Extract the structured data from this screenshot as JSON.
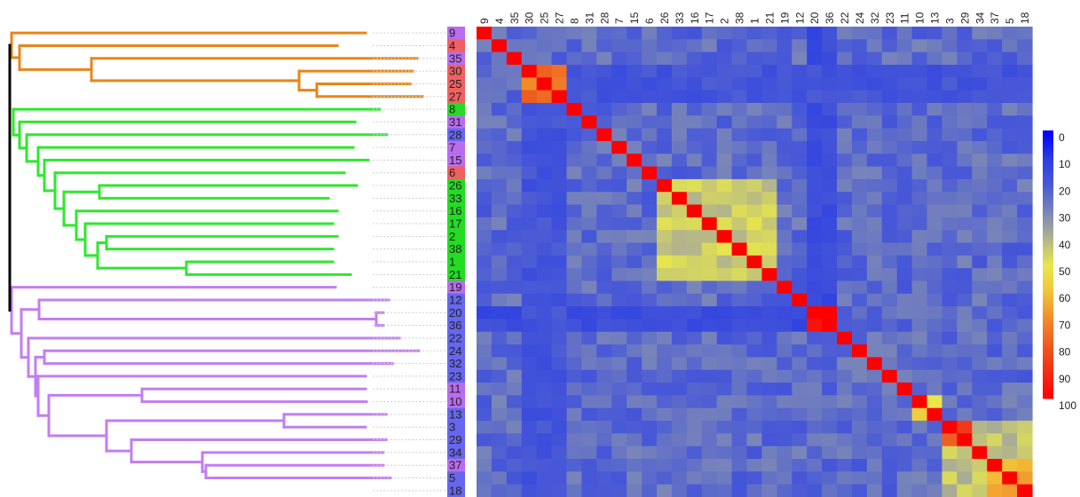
{
  "chart_data": {
    "type": "heatmap",
    "order": [
      "9",
      "4",
      "35",
      "30",
      "25",
      "27",
      "8",
      "31",
      "28",
      "7",
      "15",
      "6",
      "26",
      "33",
      "16",
      "17",
      "2",
      "38",
      "1",
      "21",
      "19",
      "12",
      "20",
      "36",
      "22",
      "24",
      "32",
      "23",
      "11",
      "10",
      "13",
      "3",
      "29",
      "34",
      "37",
      "5",
      "18"
    ],
    "leaf_groups": [
      "orange",
      "orange",
      "orange",
      "orange",
      "orange",
      "orange",
      "green",
      "green",
      "green",
      "green",
      "green",
      "green",
      "green",
      "green",
      "green",
      "green",
      "green",
      "green",
      "green",
      "green",
      "purple",
      "purple",
      "purple",
      "purple",
      "purple",
      "purple",
      "purple",
      "purple",
      "purple",
      "purple",
      "purple",
      "purple",
      "purple",
      "purple",
      "purple",
      "purple",
      "purple"
    ],
    "label_box_colors": [
      "#b86cf0",
      "#f06060",
      "#b86cf0",
      "#f06060",
      "#f06060",
      "#f06060",
      "#22dd22",
      "#b86cf0",
      "#6666ee",
      "#b86cf0",
      "#b86cf0",
      "#f06060",
      "#22dd22",
      "#22dd22",
      "#22dd22",
      "#22dd22",
      "#22dd22",
      "#22dd22",
      "#22dd22",
      "#22dd22",
      "#b86cf0",
      "#6666ee",
      "#6666ee",
      "#6666ee",
      "#6666ee",
      "#6666ee",
      "#6666ee",
      "#6666ee",
      "#b86cf0",
      "#b86cf0",
      "#6666ee",
      "#6666ee",
      "#6666ee",
      "#6666ee",
      "#b86cf0",
      "#6666ee",
      "#6666ee"
    ],
    "tree_colors": {
      "orange": "#e8851a",
      "green": "#2ee82e",
      "purple": "#c27ef2",
      "root": "#000000"
    },
    "blocks": [
      {
        "start": 3,
        "end": 5,
        "value": 75
      },
      {
        "start": 12,
        "end": 19,
        "value": 45
      },
      {
        "start": 22,
        "end": 23,
        "value": 100
      },
      {
        "start": 29,
        "end": 30,
        "value": 55
      },
      {
        "start": 31,
        "end": 32,
        "value": 82
      },
      {
        "start": 31,
        "end": 36,
        "value": 43
      },
      {
        "start": 34,
        "end": 36,
        "value": 62
      }
    ],
    "low_blocks": [
      {
        "rows": [
          22,
          23
        ],
        "cols": [
          0,
          1,
          2,
          3,
          4,
          5,
          6,
          7,
          8,
          9,
          10,
          11,
          12,
          13,
          14,
          15,
          16,
          17,
          18,
          19,
          20,
          21
        ],
        "value": 15
      },
      {
        "rows": [
          3,
          4,
          5
        ],
        "cols": [
          6,
          7,
          8,
          9,
          10,
          11,
          12,
          13,
          14,
          15,
          16,
          17,
          18,
          19,
          20,
          21,
          22,
          23,
          24,
          25,
          26,
          27,
          28,
          29,
          30,
          31,
          32,
          33,
          34,
          35,
          36
        ],
        "value": 18
      }
    ],
    "background_value": 24,
    "legend": {
      "ticks": [
        "0",
        "10",
        "20",
        "30",
        "40",
        "50",
        "60",
        "70",
        "80",
        "90",
        "100"
      ],
      "colors": [
        "#0000ff",
        "#2b3ee2",
        "#4a5ad6",
        "#7a86b8",
        "#b2b48c",
        "#e8e84a",
        "#f2c23a",
        "#f28a2a",
        "#ee5a1e",
        "#f22a16",
        "#ff0000"
      ]
    }
  }
}
